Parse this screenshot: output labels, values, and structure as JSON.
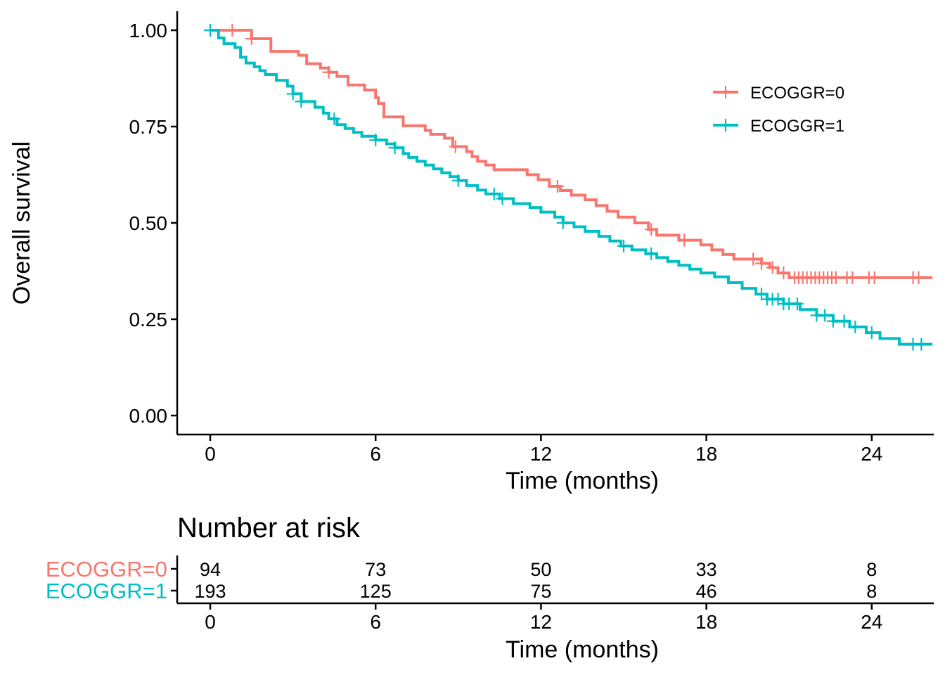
{
  "chart_data": [
    {
      "type": "line",
      "subtype": "kaplan-meier",
      "title": "",
      "xlabel": "Time (months)",
      "ylabel": "Overall survival",
      "xlim": [
        -1.2,
        26.2
      ],
      "ylim": [
        -0.05,
        1.05
      ],
      "xticks": [
        0,
        6,
        12,
        18,
        24
      ],
      "xtick_labels": [
        "0",
        "6",
        "12",
        "18",
        "24"
      ],
      "yticks": [
        0,
        0.25,
        0.5,
        0.75,
        1.0
      ],
      "ytick_labels": [
        "0.00",
        "0.25",
        "0.50",
        "0.75",
        "1.00"
      ],
      "grid": false,
      "legend_position": "top-right",
      "series": [
        {
          "name": "ECOGGR=0",
          "legend_label": "ECOGGR=0",
          "color": "#F8766D",
          "steps": [
            [
              0,
              1.0
            ],
            [
              1.5,
              0.978
            ],
            [
              2.2,
              0.945
            ],
            [
              3.2,
              0.935
            ],
            [
              3.5,
              0.913
            ],
            [
              4.0,
              0.902
            ],
            [
              4.3,
              0.891
            ],
            [
              4.6,
              0.88
            ],
            [
              5.0,
              0.858
            ],
            [
              5.6,
              0.845
            ],
            [
              6.0,
              0.825
            ],
            [
              6.1,
              0.81
            ],
            [
              6.3,
              0.775
            ],
            [
              7.0,
              0.752
            ],
            [
              7.8,
              0.74
            ],
            [
              8.0,
              0.73
            ],
            [
              8.5,
              0.72
            ],
            [
              8.8,
              0.698
            ],
            [
              9.3,
              0.685
            ],
            [
              9.5,
              0.672
            ],
            [
              9.7,
              0.66
            ],
            [
              10.0,
              0.65
            ],
            [
              10.3,
              0.638
            ],
            [
              11.5,
              0.625
            ],
            [
              11.9,
              0.612
            ],
            [
              12.3,
              0.595
            ],
            [
              12.7,
              0.584
            ],
            [
              13.1,
              0.572
            ],
            [
              13.6,
              0.56
            ],
            [
              14.0,
              0.545
            ],
            [
              14.4,
              0.53
            ],
            [
              14.8,
              0.515
            ],
            [
              15.4,
              0.5
            ],
            [
              15.9,
              0.483
            ],
            [
              16.2,
              0.468
            ],
            [
              17.0,
              0.455
            ],
            [
              17.8,
              0.443
            ],
            [
              18.2,
              0.43
            ],
            [
              18.6,
              0.418
            ],
            [
              19.0,
              0.406
            ],
            [
              20.0,
              0.395
            ],
            [
              20.3,
              0.384
            ],
            [
              20.6,
              0.37
            ],
            [
              21.0,
              0.358
            ],
            [
              26.2,
              0.358
            ]
          ],
          "censor_times": [
            0.8,
            1.5,
            4.3,
            8.9,
            12.6,
            16.0,
            17.2,
            19.7,
            20.0,
            20.4,
            20.8,
            21.2,
            21.35,
            21.5,
            21.65,
            21.8,
            21.95,
            22.1,
            22.25,
            22.4,
            22.55,
            22.7,
            23.1,
            23.3,
            23.9,
            24.1,
            25.5,
            25.7
          ]
        },
        {
          "name": "ECOGGR=1",
          "legend_label": "ECOGGR=1",
          "color": "#00BFC4",
          "steps": [
            [
              0,
              1.0
            ],
            [
              0.3,
              0.98
            ],
            [
              0.5,
              0.965
            ],
            [
              0.9,
              0.955
            ],
            [
              1.1,
              0.93
            ],
            [
              1.3,
              0.915
            ],
            [
              1.6,
              0.905
            ],
            [
              1.8,
              0.895
            ],
            [
              2.0,
              0.885
            ],
            [
              2.4,
              0.87
            ],
            [
              2.8,
              0.855
            ],
            [
              3.0,
              0.835
            ],
            [
              3.3,
              0.815
            ],
            [
              3.8,
              0.8
            ],
            [
              4.1,
              0.785
            ],
            [
              4.3,
              0.77
            ],
            [
              4.6,
              0.755
            ],
            [
              4.9,
              0.745
            ],
            [
              5.2,
              0.735
            ],
            [
              5.5,
              0.725
            ],
            [
              6.0,
              0.715
            ],
            [
              6.4,
              0.705
            ],
            [
              6.7,
              0.695
            ],
            [
              7.0,
              0.68
            ],
            [
              7.2,
              0.67
            ],
            [
              7.5,
              0.66
            ],
            [
              7.8,
              0.65
            ],
            [
              8.1,
              0.64
            ],
            [
              8.4,
              0.63
            ],
            [
              8.7,
              0.62
            ],
            [
              9.0,
              0.61
            ],
            [
              9.3,
              0.597
            ],
            [
              9.7,
              0.585
            ],
            [
              10.0,
              0.575
            ],
            [
              10.5,
              0.563
            ],
            [
              11.0,
              0.55
            ],
            [
              11.6,
              0.54
            ],
            [
              12.0,
              0.528
            ],
            [
              12.5,
              0.515
            ],
            [
              12.8,
              0.5
            ],
            [
              13.2,
              0.49
            ],
            [
              13.6,
              0.478
            ],
            [
              14.1,
              0.465
            ],
            [
              14.5,
              0.453
            ],
            [
              14.9,
              0.44
            ],
            [
              15.3,
              0.43
            ],
            [
              15.8,
              0.42
            ],
            [
              16.2,
              0.41
            ],
            [
              16.6,
              0.4
            ],
            [
              17.0,
              0.39
            ],
            [
              17.4,
              0.38
            ],
            [
              17.8,
              0.37
            ],
            [
              18.3,
              0.36
            ],
            [
              18.8,
              0.345
            ],
            [
              19.3,
              0.33
            ],
            [
              19.8,
              0.315
            ],
            [
              20.2,
              0.302
            ],
            [
              20.8,
              0.29
            ],
            [
              21.4,
              0.275
            ],
            [
              22.0,
              0.26
            ],
            [
              22.6,
              0.245
            ],
            [
              23.2,
              0.23
            ],
            [
              23.8,
              0.215
            ],
            [
              24.3,
              0.2
            ],
            [
              25.0,
              0.185
            ],
            [
              26.2,
              0.185
            ]
          ],
          "censor_times": [
            0,
            3.0,
            3.3,
            4.5,
            6.0,
            6.7,
            9.0,
            10.3,
            10.6,
            12.8,
            15.0,
            16.0,
            20.0,
            20.2,
            20.4,
            20.6,
            20.8,
            21.0,
            21.3,
            22.0,
            22.3,
            22.6,
            23.0,
            23.4,
            24.0,
            25.5,
            25.8
          ]
        }
      ]
    },
    {
      "type": "table",
      "title": "Number at risk",
      "xlabel": "Time (months)",
      "xticks": [
        0,
        6,
        12,
        18,
        24
      ],
      "xtick_labels": [
        "0",
        "6",
        "12",
        "18",
        "24"
      ],
      "rows": [
        {
          "label": "ECOGGR=0",
          "color": "#F8766D",
          "values": [
            "94",
            "73",
            "50",
            "33",
            "8"
          ]
        },
        {
          "label": "ECOGGR=1",
          "color": "#00BFC4",
          "values": [
            "193",
            "125",
            "75",
            "46",
            "8"
          ]
        }
      ]
    }
  ]
}
